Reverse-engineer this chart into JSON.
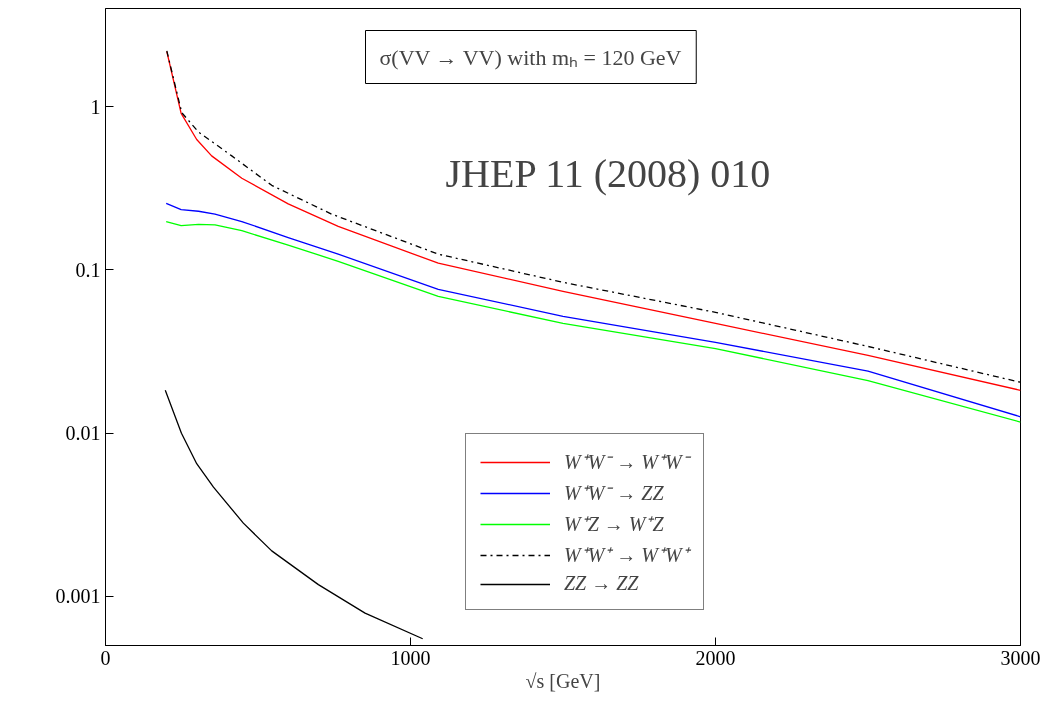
{
  "chart_data": {
    "type": "line",
    "title": "σ(VV → VV) with mₕ = 120 GeV",
    "xlabel": "√s [GeV]",
    "annotations": [
      "JHEP 11 (2008) 010"
    ],
    "xlim": [
      0,
      3000
    ],
    "ylim": [
      0.0005,
      4
    ],
    "xticks": [
      0,
      1000,
      2000,
      3000
    ],
    "yticks": [
      {
        "value": 0.001,
        "label": "0.001"
      },
      {
        "value": 0.01,
        "label": "0.01"
      },
      {
        "value": 0.1,
        "label": "0.1"
      },
      1
    ],
    "log": "y",
    "grid": false,
    "legend": "bottom",
    "marker": "none",
    "series": [
      {
        "name": "W⁺W⁻ → W⁺W⁻",
        "color": "#ff0000",
        "line_style": "solid",
        "x": [
          201,
          248,
          299,
          348,
          447,
          599,
          763,
          1091,
          1500,
          2000,
          2500,
          3000
        ],
        "values": [
          2.18,
          0.91,
          0.63,
          0.5,
          0.365,
          0.254,
          0.185,
          0.11,
          0.074,
          0.047,
          0.03,
          0.0183
        ]
      },
      {
        "name": "W⁺W⁻ → ZZ",
        "color": "#0000ff",
        "line_style": "solid",
        "x": [
          199,
          248,
          305,
          359,
          447,
          599,
          763,
          1091,
          1500,
          2000,
          2500,
          3000
        ],
        "values": [
          0.256,
          0.234,
          0.229,
          0.22,
          0.198,
          0.158,
          0.125,
          0.076,
          0.052,
          0.036,
          0.024,
          0.0126
        ]
      },
      {
        "name": "W⁺Z → W⁺Z",
        "color": "#00ff00",
        "line_style": "solid",
        "x": [
          199,
          248,
          305,
          359,
          447,
          599,
          763,
          1091,
          1500,
          2000,
          2500,
          3000
        ],
        "values": [
          0.198,
          0.187,
          0.19,
          0.189,
          0.174,
          0.142,
          0.113,
          0.069,
          0.047,
          0.033,
          0.021,
          0.0117
        ]
      },
      {
        "name": "W⁺W⁺ → W⁺W⁺",
        "color": "#000000",
        "line_style": "dashdot",
        "x": [
          201,
          250,
          305,
          414,
          545,
          741,
          1091,
          1500,
          2000,
          2500,
          3000
        ],
        "values": [
          2.2,
          0.92,
          0.7,
          0.5,
          0.33,
          0.22,
          0.125,
          0.084,
          0.055,
          0.034,
          0.0205
        ]
      },
      {
        "name": "ZZ → ZZ",
        "color": "#000000",
        "line_style": "solid",
        "x": [
          196,
          249,
          299,
          354,
          452,
          545,
          698,
          851,
          1040
        ],
        "values": [
          0.0183,
          0.01,
          0.0065,
          0.00467,
          0.00281,
          0.0019,
          0.00118,
          0.00079,
          0.00055
        ]
      }
    ]
  }
}
